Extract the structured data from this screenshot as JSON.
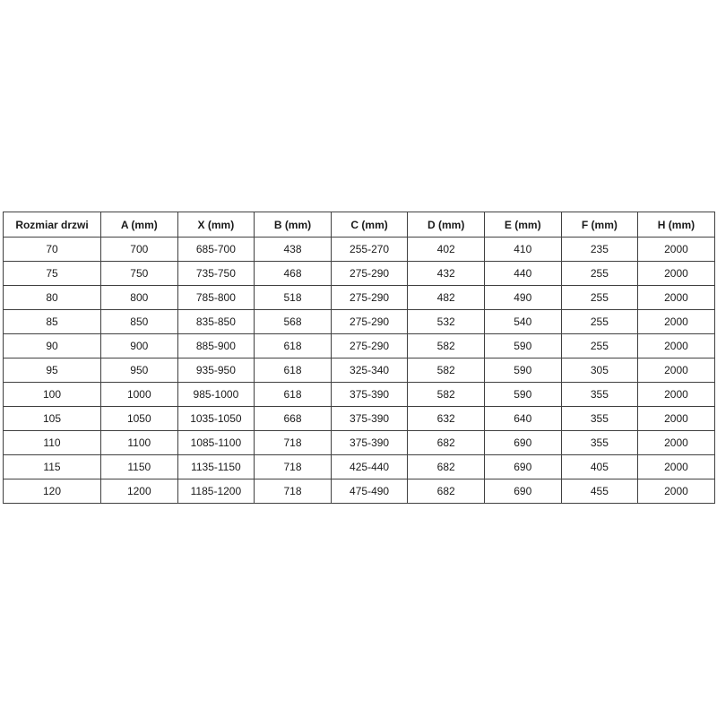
{
  "colors": {
    "background": "#ffffff",
    "table_border": "#404040",
    "text": "#1a1a1a"
  },
  "chart_data": {
    "type": "table",
    "columns": [
      "Rozmiar drzwi",
      "A (mm)",
      "X (mm)",
      "B (mm)",
      "C (mm)",
      "D (mm)",
      "E (mm)",
      "F (mm)",
      "H (mm)"
    ],
    "rows": [
      [
        "70",
        "700",
        "685-700",
        "438",
        "255-270",
        "402",
        "410",
        "235",
        "2000"
      ],
      [
        "75",
        "750",
        "735-750",
        "468",
        "275-290",
        "432",
        "440",
        "255",
        "2000"
      ],
      [
        "80",
        "800",
        "785-800",
        "518",
        "275-290",
        "482",
        "490",
        "255",
        "2000"
      ],
      [
        "85",
        "850",
        "835-850",
        "568",
        "275-290",
        "532",
        "540",
        "255",
        "2000"
      ],
      [
        "90",
        "900",
        "885-900",
        "618",
        "275-290",
        "582",
        "590",
        "255",
        "2000"
      ],
      [
        "95",
        "950",
        "935-950",
        "618",
        "325-340",
        "582",
        "590",
        "305",
        "2000"
      ],
      [
        "100",
        "1000",
        "985-1000",
        "618",
        "375-390",
        "582",
        "590",
        "355",
        "2000"
      ],
      [
        "105",
        "1050",
        "1035-1050",
        "668",
        "375-390",
        "632",
        "640",
        "355",
        "2000"
      ],
      [
        "110",
        "1100",
        "1085-1100",
        "718",
        "375-390",
        "682",
        "690",
        "355",
        "2000"
      ],
      [
        "115",
        "1150",
        "1135-1150",
        "718",
        "425-440",
        "682",
        "690",
        "405",
        "2000"
      ],
      [
        "120",
        "1200",
        "1185-1200",
        "718",
        "475-490",
        "682",
        "690",
        "455",
        "2000"
      ]
    ],
    "layout": {
      "grid": true,
      "header_bold": true,
      "cell_alignment": "center"
    }
  }
}
